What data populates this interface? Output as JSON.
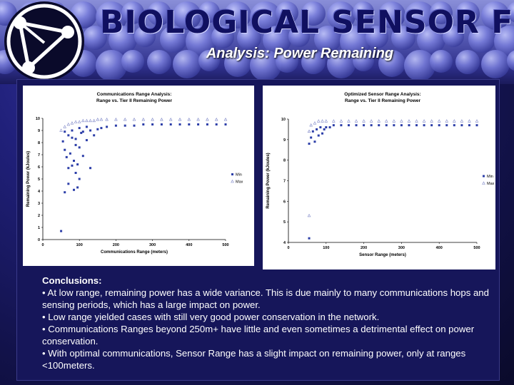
{
  "header": {
    "title": "BIOLOGICAL SENSOR FUSION",
    "subtitle": "Analysis: Power Remaining",
    "logo_icon": "biohazard-network-icon"
  },
  "colors": {
    "background": "#1a1a6a",
    "title_text": "#101060",
    "min_series": "#2c3ea8",
    "max_series": "#7f88c8"
  },
  "chart_data": [
    {
      "type": "scatter",
      "title": "Communications Range Analysis:",
      "subtitle": "Range vs. Tier II Remaining Power",
      "xlabel": "Communications Range (meters)",
      "ylabel": "Remaining Power (kJoules)",
      "xlim": [
        0,
        500
      ],
      "ylim": [
        0,
        10
      ],
      "x_ticks": [
        "0",
        "100",
        "200",
        "300",
        "400",
        "500"
      ],
      "y_ticks": [
        "0",
        "1",
        "2",
        "3",
        "4",
        "5",
        "6",
        "7",
        "8",
        "9",
        "10"
      ],
      "legend_position": "right",
      "grid": false,
      "series": [
        {
          "name": "Min",
          "marker": "square",
          "points": [
            [
              50,
              0.7
            ],
            [
              60,
              3.9
            ],
            [
              70,
              4.6
            ],
            [
              80,
              6.1
            ],
            [
              85,
              4.1
            ],
            [
              90,
              5.5
            ],
            [
              95,
              4.3
            ],
            [
              100,
              5.0
            ],
            [
              55,
              8.1
            ],
            [
              60,
              7.4
            ],
            [
              65,
              6.8
            ],
            [
              70,
              5.9
            ],
            [
              75,
              7.1
            ],
            [
              80,
              8.4
            ],
            [
              85,
              6.5
            ],
            [
              90,
              7.8
            ],
            [
              95,
              6.2
            ],
            [
              100,
              7.6
            ],
            [
              105,
              8.8
            ],
            [
              110,
              6.9
            ],
            [
              120,
              8.2
            ],
            [
              130,
              5.9
            ],
            [
              140,
              8.6
            ],
            [
              150,
              9.1
            ],
            [
              60,
              8.9
            ],
            [
              70,
              8.6
            ],
            [
              80,
              9.0
            ],
            [
              90,
              8.3
            ],
            [
              100,
              9.2
            ],
            [
              110,
              8.9
            ],
            [
              120,
              9.3
            ],
            [
              130,
              9.0
            ],
            [
              160,
              9.2
            ],
            [
              175,
              9.3
            ],
            [
              200,
              9.4
            ],
            [
              225,
              9.4
            ],
            [
              250,
              9.4
            ],
            [
              275,
              9.5
            ],
            [
              300,
              9.5
            ],
            [
              325,
              9.5
            ],
            [
              350,
              9.5
            ],
            [
              375,
              9.5
            ],
            [
              400,
              9.5
            ],
            [
              425,
              9.5
            ],
            [
              450,
              9.5
            ],
            [
              475,
              9.5
            ],
            [
              500,
              9.5
            ]
          ]
        },
        {
          "name": "Max",
          "marker": "triangle",
          "points": [
            [
              50,
              9.0
            ],
            [
              60,
              9.3
            ],
            [
              70,
              9.5
            ],
            [
              80,
              9.6
            ],
            [
              90,
              9.7
            ],
            [
              100,
              9.7
            ],
            [
              110,
              9.8
            ],
            [
              120,
              9.8
            ],
            [
              130,
              9.8
            ],
            [
              140,
              9.8
            ],
            [
              150,
              9.9
            ],
            [
              160,
              9.9
            ],
            [
              175,
              9.9
            ],
            [
              200,
              9.9
            ],
            [
              225,
              9.9
            ],
            [
              250,
              9.9
            ],
            [
              275,
              9.9
            ],
            [
              300,
              9.9
            ],
            [
              325,
              9.9
            ],
            [
              350,
              9.9
            ],
            [
              375,
              9.9
            ],
            [
              400,
              9.9
            ],
            [
              425,
              9.9
            ],
            [
              450,
              9.9
            ],
            [
              475,
              9.9
            ],
            [
              500,
              9.9
            ]
          ]
        }
      ]
    },
    {
      "type": "scatter",
      "title": "Optimized Sensor Range Analysis:",
      "subtitle": "Range vs. Tier II Remaining Power",
      "xlabel": "Sensor Range (meters)",
      "ylabel": "Remaining Power (kJoules)",
      "xlim": [
        0,
        500
      ],
      "ylim": [
        4,
        10
      ],
      "x_ticks": [
        "0",
        "100",
        "200",
        "300",
        "400",
        "500"
      ],
      "y_ticks": [
        "4",
        "5",
        "6",
        "7",
        "8",
        "9",
        "10"
      ],
      "legend_position": "right",
      "grid": false,
      "series": [
        {
          "name": "Min",
          "marker": "square",
          "points": [
            [
              55,
              4.2
            ],
            [
              55,
              8.8
            ],
            [
              60,
              9.1
            ],
            [
              65,
              9.4
            ],
            [
              70,
              8.9
            ],
            [
              75,
              9.5
            ],
            [
              80,
              9.2
            ],
            [
              85,
              9.6
            ],
            [
              90,
              9.3
            ],
            [
              95,
              9.5
            ],
            [
              100,
              9.6
            ],
            [
              110,
              9.6
            ],
            [
              120,
              9.7
            ],
            [
              140,
              9.7
            ],
            [
              160,
              9.7
            ],
            [
              180,
              9.7
            ],
            [
              200,
              9.7
            ],
            [
              220,
              9.7
            ],
            [
              240,
              9.7
            ],
            [
              260,
              9.7
            ],
            [
              280,
              9.7
            ],
            [
              300,
              9.7
            ],
            [
              320,
              9.7
            ],
            [
              340,
              9.7
            ],
            [
              360,
              9.7
            ],
            [
              380,
              9.7
            ],
            [
              400,
              9.7
            ],
            [
              420,
              9.7
            ],
            [
              440,
              9.7
            ],
            [
              460,
              9.7
            ],
            [
              480,
              9.7
            ],
            [
              500,
              9.7
            ]
          ]
        },
        {
          "name": "Max",
          "marker": "triangle",
          "points": [
            [
              55,
              5.3
            ],
            [
              55,
              9.4
            ],
            [
              60,
              9.7
            ],
            [
              70,
              9.8
            ],
            [
              80,
              9.9
            ],
            [
              90,
              9.9
            ],
            [
              100,
              9.9
            ],
            [
              120,
              9.9
            ],
            [
              140,
              9.9
            ],
            [
              160,
              9.9
            ],
            [
              180,
              9.9
            ],
            [
              200,
              9.9
            ],
            [
              220,
              9.9
            ],
            [
              240,
              9.9
            ],
            [
              260,
              9.9
            ],
            [
              280,
              9.9
            ],
            [
              300,
              9.9
            ],
            [
              320,
              9.9
            ],
            [
              340,
              9.9
            ],
            [
              360,
              9.9
            ],
            [
              380,
              9.9
            ],
            [
              400,
              9.9
            ],
            [
              420,
              9.9
            ],
            [
              440,
              9.9
            ],
            [
              460,
              9.9
            ],
            [
              480,
              9.9
            ],
            [
              500,
              9.9
            ]
          ]
        }
      ]
    }
  ],
  "conclusions": {
    "heading": "Conclusions:",
    "items": [
      "• At low range, remaining power has a wide variance.  This is due mainly to many communications hops and sensing periods, which has a large impact on power.",
      "• Low range yielded cases with still very good power conservation in the network.",
      "• Communications Ranges beyond 250m+ have little and even sometimes a detrimental effect on power conservation.",
      "• With optimal communications, Sensor Range has a slight impact on remaining power, only at ranges <100meters."
    ]
  }
}
